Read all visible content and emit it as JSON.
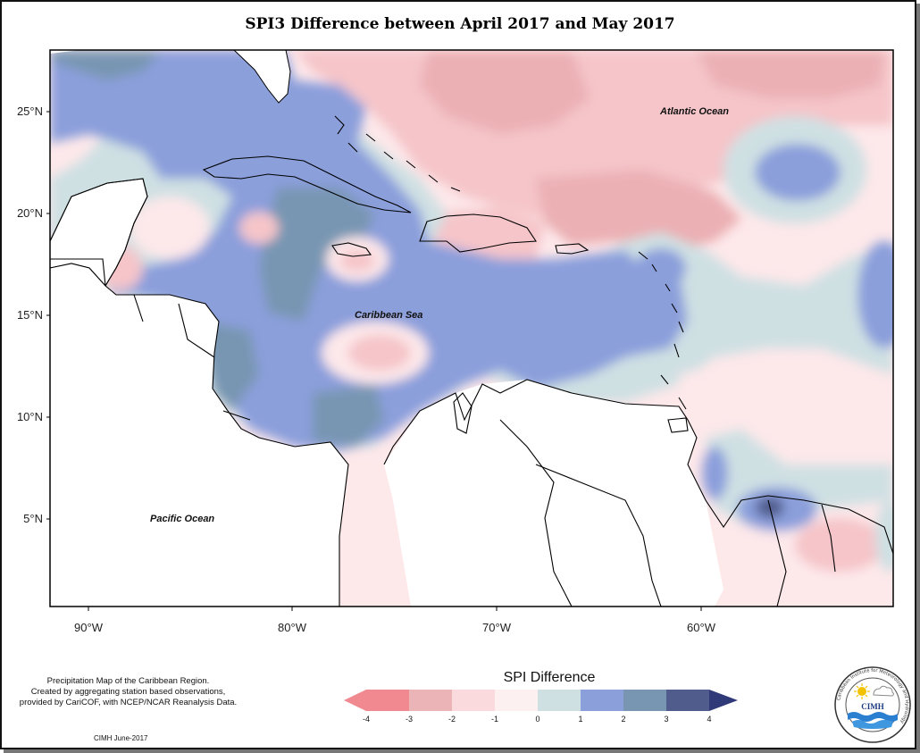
{
  "title": "SPI3 Difference between April 2017 and May 2017",
  "axes": {
    "lat_labels": [
      "25°N",
      "20°N",
      "15°N",
      "10°N",
      "5°N"
    ],
    "lon_labels": [
      "90°W",
      "80°W",
      "70°W",
      "60°W"
    ]
  },
  "labels": {
    "atlantic": "Atlantic Ocean",
    "caribbean": "Caribbean Sea",
    "pacific": "Pacific Ocean"
  },
  "caption": {
    "line1": "Precipitation Map of the Caribbean Region.",
    "line2": "Created by aggregating station based observations,",
    "line3": "provided by CariCOF, with NCEP/NCAR Reanalysis Data."
  },
  "credit": "CIMH June-2017",
  "legend": {
    "title": "SPI Difference",
    "ticks": [
      "-4",
      "-3",
      "-2",
      "-1",
      "0",
      "1",
      "2",
      "3",
      "4"
    ],
    "colors": [
      "#f08a90",
      "#ebb5b8",
      "#fadadd",
      "#fdf0f1",
      "#cfe0e3",
      "#8b9fdb",
      "#7896b2",
      "#4f5c8c",
      "#303a78"
    ]
  },
  "logo": {
    "name": "CIMH",
    "ring_text": "Caribbean Institute for Meteorology and Hydrology"
  }
}
